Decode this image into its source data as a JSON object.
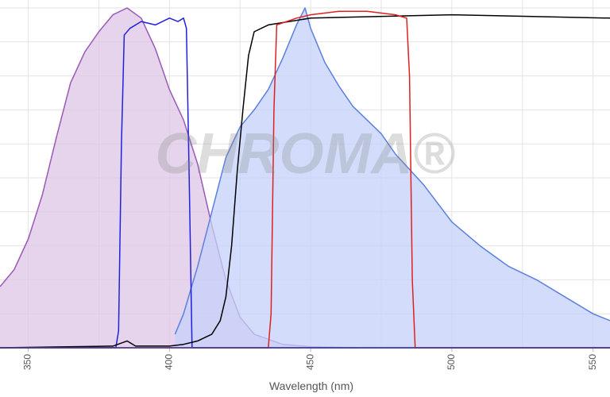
{
  "chart_data": {
    "type": "line",
    "x_label": "Wavelength (nm)",
    "watermark": "CHROMA®",
    "xlim": [
      340,
      556
    ],
    "ylim": [
      0,
      100
    ],
    "xticks": [
      350,
      400,
      450,
      500,
      550
    ],
    "xgrid": [
      350,
      375,
      400,
      425,
      450,
      475,
      500,
      525,
      550
    ],
    "ygrid": [
      10,
      20,
      30,
      40,
      50,
      60,
      70,
      80,
      90,
      100
    ],
    "series": [
      {
        "color": "#9b59b6",
        "fill": "#dcc6e6",
        "x": [
          340,
          345,
          350,
          355,
          360,
          365,
          370,
          375,
          380,
          385,
          390,
          395,
          400,
          405,
          410,
          415,
          420,
          425,
          430,
          440,
          450,
          467
        ],
        "values": [
          18,
          23,
          32,
          45,
          62,
          78,
          87,
          93,
          98,
          100,
          97,
          88,
          76,
          67,
          54,
          36,
          20,
          9,
          4,
          1,
          0.3,
          0
        ]
      },
      {
        "color": "#5b7fe0",
        "fill": "#c4d1fa",
        "x": [
          402,
          405,
          410,
          415,
          420,
          425,
          430,
          435,
          440,
          445,
          448,
          450,
          455,
          460,
          465,
          470,
          475,
          480,
          490,
          500,
          510,
          520,
          530,
          540,
          550,
          556
        ],
        "values": [
          4,
          10,
          24,
          40,
          56,
          65,
          70,
          76,
          85,
          95,
          100,
          94,
          84,
          77,
          71,
          67,
          63,
          57,
          48,
          37,
          30,
          24,
          20,
          15,
          10,
          8
        ]
      },
      {
        "color": "#2020dd",
        "x": [
          340,
          381,
          382,
          383,
          384,
          386,
          390,
          395,
          400,
          403,
          405,
          406,
          407,
          408,
          556
        ],
        "values": [
          0,
          0,
          5,
          60,
          92,
          94,
          96,
          95,
          97,
          96,
          97,
          94,
          50,
          0,
          0
        ]
      },
      {
        "color": "#000000",
        "x": [
          340,
          380,
          385,
          388,
          400,
          405,
          410,
          415,
          418,
          420,
          422,
          424,
          426,
          428,
          430,
          435,
          450,
          500,
          556
        ],
        "values": [
          0,
          0.5,
          2,
          0.5,
          0.5,
          1,
          2,
          4,
          8,
          15,
          30,
          52,
          70,
          86,
          93,
          95,
          97,
          98,
          97
        ]
      },
      {
        "color": "#e02020",
        "x": [
          340,
          435,
          436,
          437,
          438,
          445,
          450,
          460,
          470,
          480,
          484,
          485,
          486,
          487,
          556
        ],
        "values": [
          0,
          0,
          10,
          70,
          95,
          97,
          98,
          99,
          99,
          98,
          97,
          80,
          20,
          0,
          0
        ]
      }
    ]
  }
}
